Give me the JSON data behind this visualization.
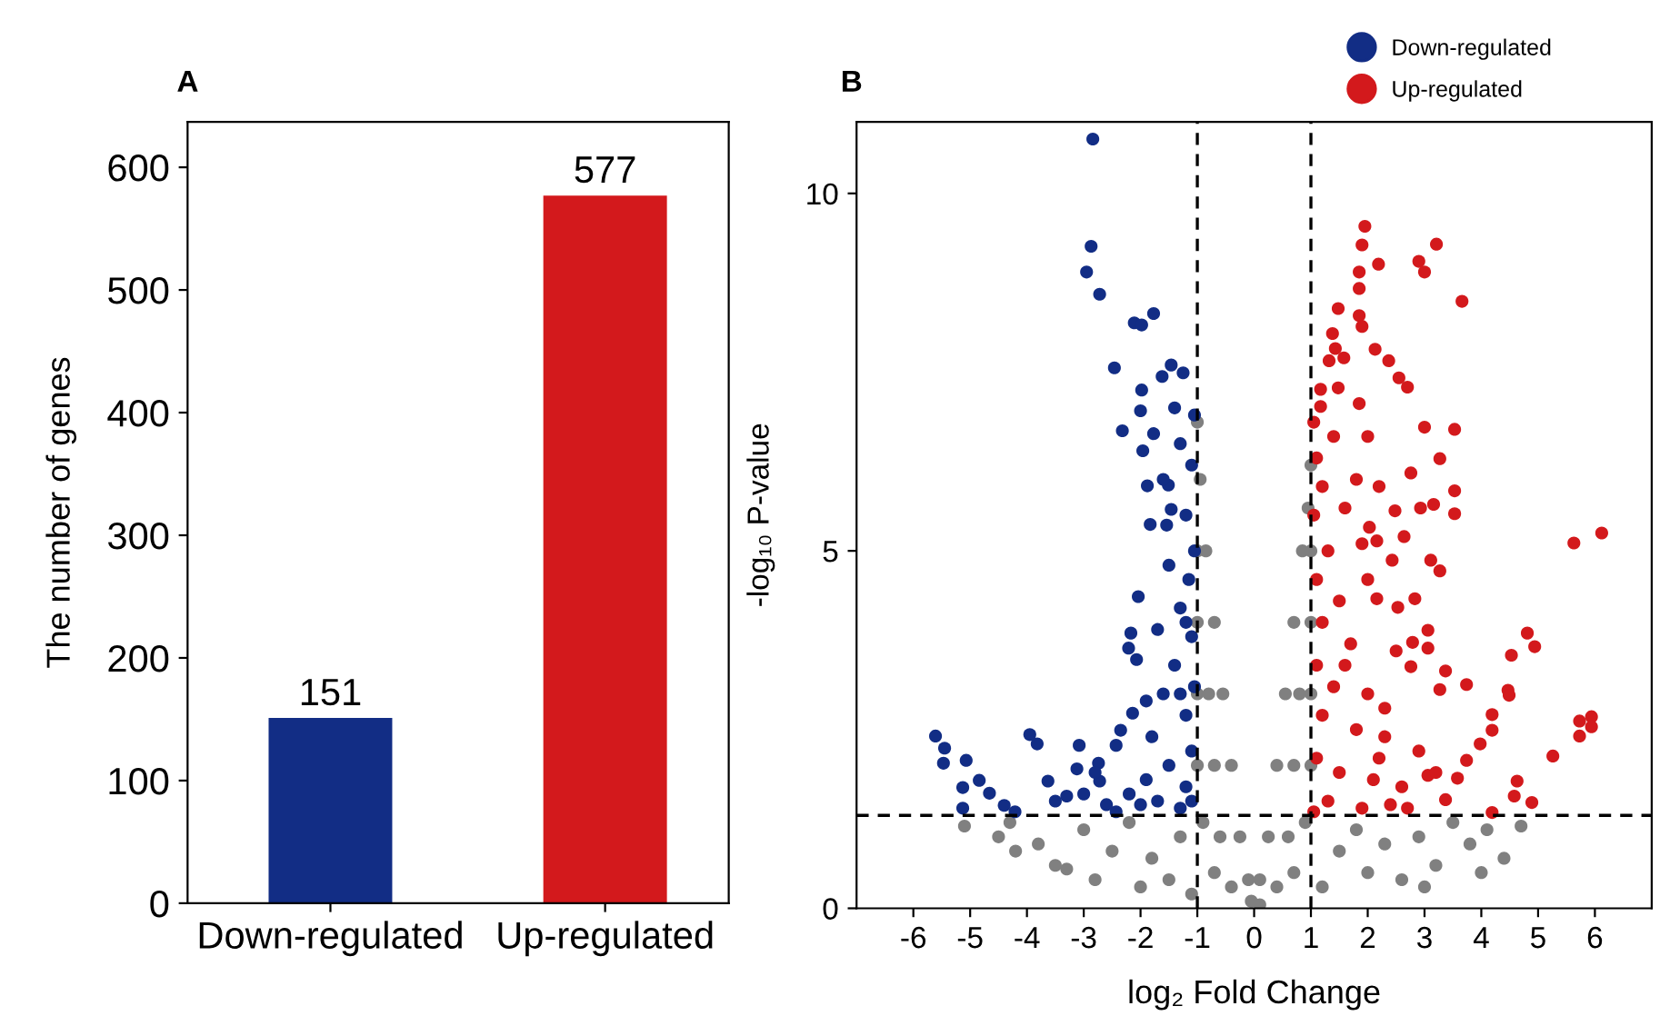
{
  "chart_data": [
    {
      "type": "bar",
      "title": "A",
      "ylabel": "The number of genes",
      "categories": [
        "Down-regulated",
        "Up-regulated"
      ],
      "values": [
        151,
        577
      ],
      "colors": [
        "#122d85",
        "#d3191c"
      ],
      "ylim": [
        0,
        637
      ],
      "yticks": [
        0,
        100,
        200,
        300,
        400,
        500,
        600
      ],
      "data_labels": true,
      "grid": false,
      "legend": false
    },
    {
      "type": "scatter",
      "title": "B",
      "xlabel": "log₂ Fold Change",
      "ylabel": "-log₁₀ P-value",
      "xlim": [
        -7,
        7
      ],
      "ylim": [
        0,
        11
      ],
      "xticks": [
        -6,
        -5,
        -4,
        -3,
        -2,
        -1,
        0,
        1,
        2,
        3,
        4,
        5,
        6
      ],
      "yticks": [
        0,
        5,
        10
      ],
      "marker": "circle",
      "grid": false,
      "legend": "top right",
      "ref_lines": [
        {
          "axis": "x",
          "value": -1,
          "color": "#000000",
          "line_style": "dashed"
        },
        {
          "axis": "x",
          "value": 1,
          "color": "#000000",
          "line_style": "dashed"
        },
        {
          "axis": "y",
          "value": 1.3,
          "color": "#000000",
          "line_style": "dashed"
        }
      ],
      "series": [
        {
          "color": "#808080",
          "x": [
            -1.0,
            -0.95,
            -0.85,
            -1.0,
            -0.7,
            -1.0,
            -0.55,
            -0.8,
            -1.0,
            -0.4,
            -0.7,
            -1.0,
            -0.25,
            -0.6,
            -0.9,
            -0.1,
            -0.4,
            -0.7,
            1.0,
            0.95,
            0.85,
            1.0,
            0.7,
            1.0,
            0.55,
            0.8,
            1.0,
            0.4,
            0.7,
            1.0,
            0.25,
            0.6,
            0.9,
            0.1,
            0.4,
            0.7,
            -5.1,
            -4.5,
            -4.2,
            -3.8,
            -3.5,
            -3.0,
            -2.8,
            -2.5,
            -2.2,
            -2.0,
            -1.8,
            -1.5,
            -1.3,
            -1.1,
            -4.3,
            -3.3,
            1.2,
            1.5,
            1.8,
            2.0,
            2.3,
            2.6,
            2.9,
            3.2,
            3.5,
            3.8,
            4.1,
            4.4,
            4.7,
            4.0,
            3.0,
            -0.05,
            0.1
          ],
          "values": [
            6.8,
            6.0,
            5.0,
            5.0,
            4.0,
            4.0,
            3.0,
            3.0,
            3.0,
            2.0,
            2.0,
            2.0,
            1.0,
            1.0,
            1.2,
            0.4,
            0.3,
            0.5,
            6.2,
            5.6,
            5.0,
            5.0,
            4.0,
            4.0,
            3.0,
            3.0,
            3.0,
            2.0,
            2.0,
            2.0,
            1.0,
            1.0,
            1.2,
            0.4,
            0.3,
            0.5,
            1.15,
            1.0,
            0.8,
            0.9,
            0.6,
            1.1,
            0.4,
            0.8,
            1.2,
            0.3,
            0.7,
            0.4,
            1.0,
            0.2,
            1.2,
            0.55,
            0.3,
            0.8,
            1.1,
            0.5,
            0.9,
            0.4,
            1.0,
            0.6,
            1.2,
            0.9,
            1.1,
            0.7,
            1.15,
            0.5,
            0.3,
            0.1,
            0.05
          ]
        },
        {
          "name": "Down-regulated",
          "color": "#122d85",
          "x": [
            -2.84,
            -2.87,
            -2.95,
            -2.72,
            -2.11,
            -1.98,
            -1.77,
            -2.46,
            -1.46,
            -1.25,
            -1.62,
            -1.98,
            -2.0,
            -2.32,
            -1.77,
            -1.96,
            -1.88,
            -1.51,
            -1.46,
            -1.83,
            -1.54,
            -2.04,
            -2.17,
            -2.21,
            -2.07,
            -2.14,
            -2.35,
            -2.43,
            -5.61,
            -5.45,
            -5.47,
            -5.07,
            -5.13,
            -4.84,
            -4.66,
            -5.13,
            -4.4,
            -4.21,
            -3.95,
            -3.82,
            -3.63,
            -3.08,
            -3.12,
            -3.3,
            -2.74,
            -2.72,
            -2.43,
            -1.05,
            -1.1,
            -1.2,
            -1.05,
            -1.15,
            -1.3,
            -1.1,
            -1.4,
            -1.05,
            -1.6,
            -1.2,
            -1.8,
            -1.1,
            -1.5,
            -1.9,
            -1.2,
            -1.7,
            -2.2,
            -1.3,
            -2.0,
            -1.6,
            -1.3,
            -1.4,
            -1.2,
            -1.5,
            -1.7,
            -1.3,
            -1.9,
            -1.1,
            -2.6,
            -3.0,
            -3.5,
            -2.8
          ],
          "values": [
            10.76,
            9.26,
            8.9,
            8.59,
            8.19,
            8.16,
            8.32,
            7.56,
            7.6,
            7.49,
            7.44,
            7.25,
            6.96,
            6.68,
            6.64,
            6.4,
            5.91,
            5.92,
            5.58,
            5.37,
            5.36,
            4.36,
            3.85,
            3.64,
            3.48,
            2.73,
            2.49,
            2.28,
            2.41,
            2.24,
            2.03,
            2.07,
            1.69,
            1.79,
            1.61,
            1.4,
            1.44,
            1.35,
            2.43,
            2.3,
            1.78,
            2.28,
            1.95,
            1.57,
            2.03,
            1.78,
            1.35,
            6.9,
            6.2,
            5.5,
            5.0,
            4.6,
            4.2,
            3.8,
            3.4,
            3.1,
            3.0,
            2.7,
            2.4,
            2.2,
            2.0,
            1.8,
            1.7,
            1.5,
            1.6,
            1.4,
            1.45,
            6.0,
            6.5,
            7.0,
            4.0,
            4.8,
            3.9,
            3.0,
            2.9,
            1.5,
            1.45,
            1.6,
            1.5,
            1.9
          ]
        },
        {
          "name": "Up-regulated",
          "color": "#d3191c",
          "x": [
            1.95,
            1.9,
            2.19,
            3.21,
            2.9,
            3.0,
            3.66,
            1.85,
            1.85,
            1.48,
            1.85,
            1.9,
            1.38,
            1.43,
            1.32,
            1.58,
            2.13,
            2.37,
            2.55,
            2.7,
            1.17,
            1.48,
            1.85,
            1.17,
            3.0,
            3.53,
            3.27,
            2.76,
            3.53,
            3.53,
            3.16,
            2.93,
            2.48,
            2.03,
            2.16,
            2.64,
            2.43,
            3.11,
            3.27,
            5.63,
            6.12,
            2.16,
            2.53,
            2.83,
            3.06,
            2.79,
            3.06,
            2.76,
            3.37,
            3.74,
            3.27,
            4.81,
            4.94,
            4.53,
            4.47,
            4.49,
            4.19,
            4.19,
            3.98,
            3.74,
            5.73,
            5.94,
            5.73,
            5.94,
            5.26,
            4.63,
            4.58,
            4.89,
            4.19,
            3.58,
            3.06,
            3.37,
            1.05,
            1.1,
            1.2,
            1.05,
            1.3,
            1.1,
            1.5,
            1.2,
            1.7,
            1.1,
            1.4,
            2.0,
            1.2,
            1.8,
            2.3,
            1.1,
            1.5,
            2.1,
            2.6,
            1.3,
            1.9,
            2.4,
            1.6,
            1.8,
            2.0,
            1.6,
            2.2,
            2.9,
            3.2,
            2.7,
            1.05,
            1.4,
            2.2,
            2.0,
            1.9,
            2.5,
            2.3
          ],
          "values": [
            9.54,
            9.28,
            9.01,
            9.29,
            9.05,
            8.9,
            8.49,
            8.9,
            8.67,
            8.39,
            8.29,
            8.14,
            8.04,
            7.83,
            7.66,
            7.7,
            7.82,
            7.66,
            7.42,
            7.29,
            7.26,
            7.28,
            7.06,
            7.02,
            6.73,
            6.7,
            6.29,
            6.09,
            5.84,
            5.52,
            5.65,
            5.6,
            5.56,
            5.33,
            5.14,
            5.2,
            4.87,
            4.87,
            4.72,
            5.11,
            5.25,
            4.33,
            4.21,
            4.33,
            3.89,
            3.72,
            3.64,
            3.38,
            3.32,
            3.13,
            3.06,
            3.85,
            3.66,
            3.54,
            3.05,
            2.98,
            2.71,
            2.49,
            2.3,
            2.07,
            2.62,
            2.68,
            2.41,
            2.54,
            2.13,
            1.78,
            1.57,
            1.48,
            1.34,
            1.82,
            1.86,
            1.52,
            6.8,
            6.3,
            5.9,
            5.5,
            5.0,
            4.6,
            4.3,
            4.0,
            3.7,
            3.4,
            3.1,
            3.0,
            2.7,
            2.5,
            2.4,
            2.1,
            1.9,
            1.8,
            1.7,
            1.5,
            1.4,
            1.45,
            5.6,
            6.0,
            4.6,
            3.4,
            2.1,
            2.2,
            1.9,
            1.4,
            1.35,
            6.6,
            5.9,
            6.6,
            5.1,
            3.6,
            2.8
          ]
        }
      ]
    }
  ]
}
